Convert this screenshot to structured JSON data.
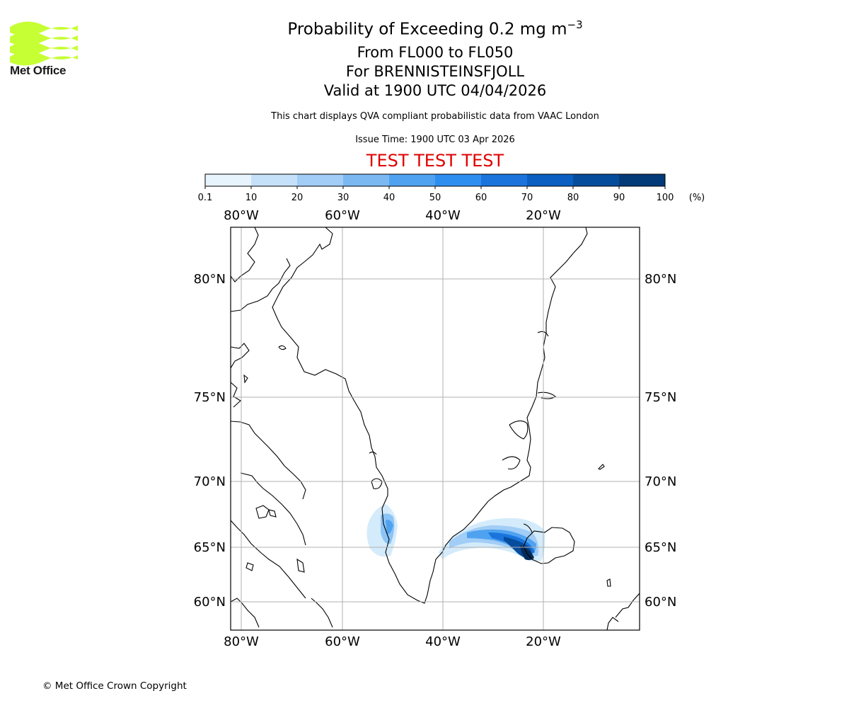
{
  "header": {
    "title_prefix": "Probability of Exceeding 0.2 mg m",
    "title_exponent": "−3",
    "range": "From FL000 to FL050",
    "volcano": "For BRENNISTEINSFJOLL",
    "valid_time": "Valid at 1900 UTC 04/04/2026",
    "subtitle": "This chart displays QVA compliant probabilistic data from VAAC London",
    "issue_time": "Issue Time: 1900 UTC 03 Apr 2026",
    "test_banner": "TEST TEST TEST"
  },
  "logo": {
    "text": "Met Office",
    "color": "#c6ff33"
  },
  "colorbar": {
    "ticks": [
      "0.1",
      "10",
      "20",
      "30",
      "40",
      "50",
      "60",
      "70",
      "80",
      "90",
      "100"
    ],
    "unit": "(%)",
    "colors": [
      "#e8f4fd",
      "#c5e1f9",
      "#a1cdf6",
      "#7bb8f2",
      "#4fa2f0",
      "#2e8ef0",
      "#1a74dc",
      "#0a5fc0",
      "#064c9c",
      "#033a78",
      "#022a58"
    ]
  },
  "map": {
    "lon_labels": [
      "80°W",
      "60°W",
      "40°W",
      "20°W"
    ],
    "lat_labels": [
      "80°N",
      "75°N",
      "70°N",
      "65°N",
      "60°N"
    ],
    "lon_lines": [
      -80,
      -60,
      -40,
      -20
    ],
    "lat_lines": [
      80,
      75,
      70,
      65,
      60
    ]
  },
  "footer": {
    "copyright": "© Met Office Crown Copyright"
  }
}
